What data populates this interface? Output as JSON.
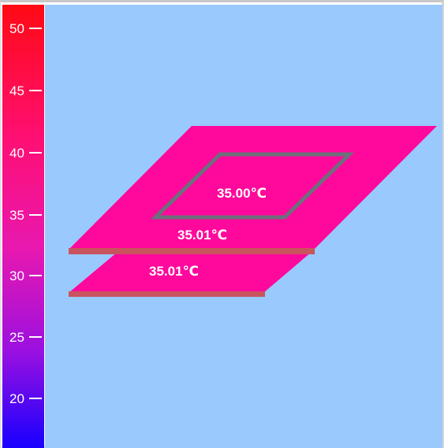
{
  "scale": {
    "colors": {
      "top": "#ff0a14",
      "upper": "#ff0f73",
      "mid": "#e818b0",
      "lower": "#9b10e0",
      "bottom": "#1700ff"
    },
    "ticks": [
      {
        "label": "50",
        "value": 50
      },
      {
        "label": "45",
        "value": 45
      },
      {
        "label": "40",
        "value": 40
      },
      {
        "label": "35",
        "value": 35
      },
      {
        "label": "30",
        "value": 30
      },
      {
        "label": "25",
        "value": 25
      },
      {
        "label": "20",
        "value": 20
      }
    ]
  },
  "view": {
    "background": "#99c9fd",
    "plate_color": "#ff089c",
    "edge_color": "#c9545e",
    "outline_color": "#6d6f7c"
  },
  "plates": {
    "top_plate_label": "35.01℃",
    "inner_region_label": "35.00℃",
    "bottom_plate_label": "35.01℃"
  }
}
